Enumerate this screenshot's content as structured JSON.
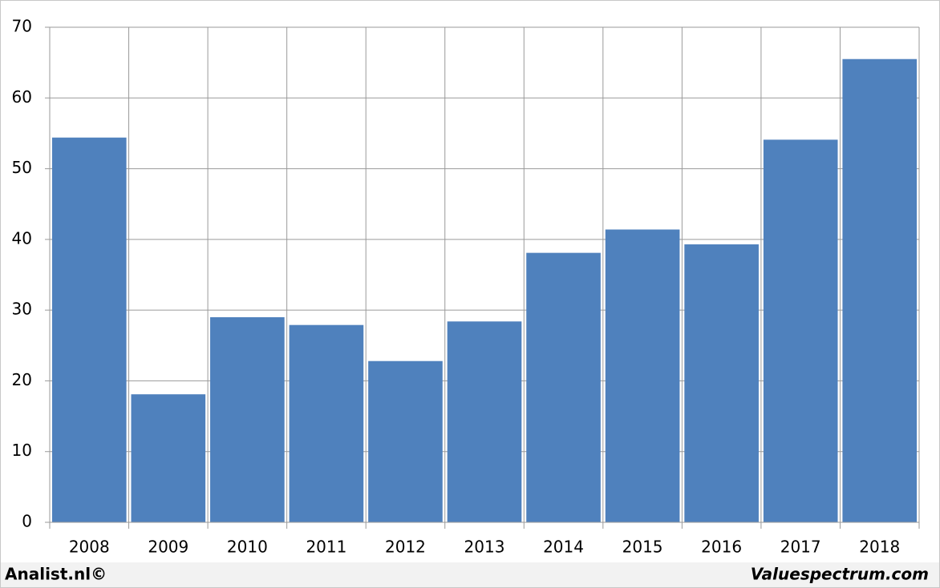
{
  "chart_data": {
    "type": "bar",
    "categories": [
      "2008",
      "2009",
      "2010",
      "2011",
      "2012",
      "2013",
      "2014",
      "2015",
      "2016",
      "2017",
      "2018"
    ],
    "values": [
      54.4,
      18.1,
      29.0,
      27.9,
      22.8,
      28.4,
      38.1,
      41.4,
      39.3,
      54.1,
      65.5
    ],
    "color": "#4f81bd",
    "ylim": [
      0,
      70
    ],
    "yticks": [
      0,
      10,
      20,
      30,
      40,
      50,
      60,
      70
    ],
    "grid": true,
    "footer_left": "Analist.nl©",
    "footer_right": "Valuespectrum.com"
  }
}
